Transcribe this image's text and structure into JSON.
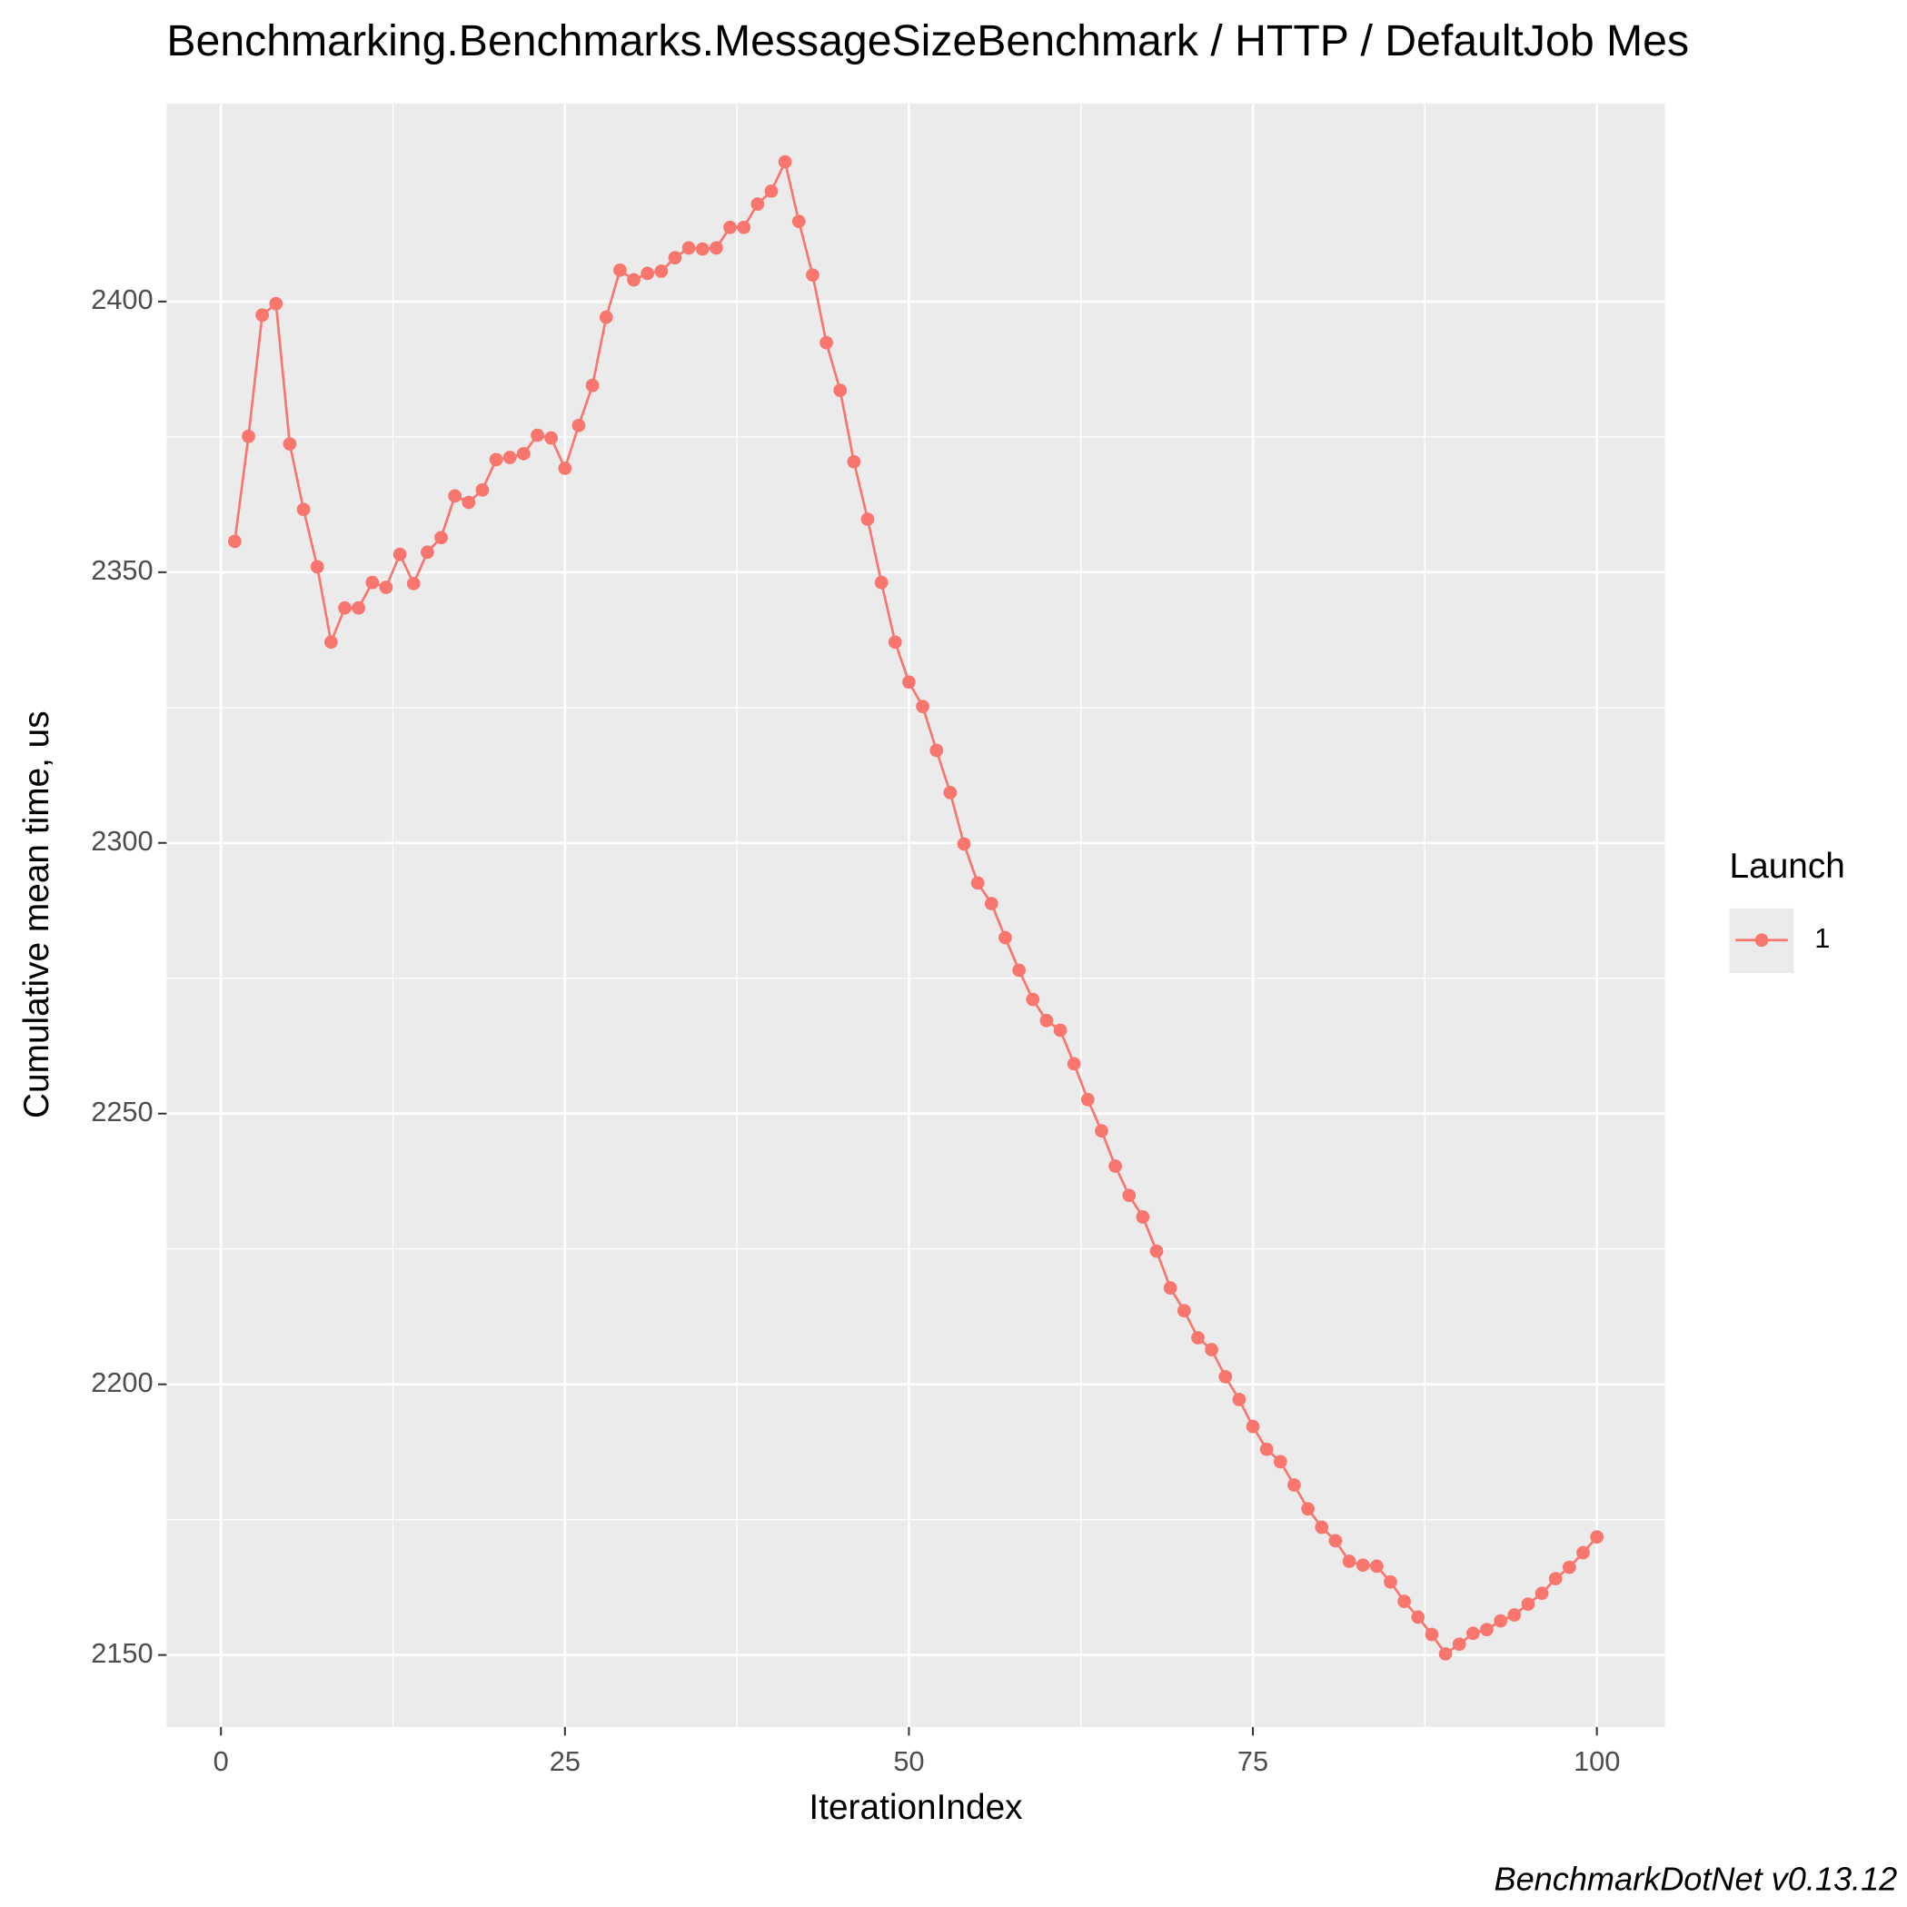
{
  "chart_data": {
    "type": "line",
    "title": "Benchmarking.Benchmarks.MessageSizeBenchmark / HTTP / DefaultJob Mes",
    "x_label": "IterationIndex",
    "y_label": "Cumulative mean time, us",
    "caption": "BenchmarkDotNet v0.13.12",
    "legend_title": "Launch",
    "legend_position": "right",
    "x": [
      1,
      2,
      3,
      4,
      5,
      6,
      7,
      8,
      9,
      10,
      11,
      12,
      13,
      14,
      15,
      16,
      17,
      18,
      19,
      20,
      21,
      22,
      23,
      24,
      25,
      26,
      27,
      28,
      29,
      30,
      31,
      32,
      33,
      34,
      35,
      36,
      37,
      38,
      39,
      40,
      41,
      42,
      43,
      44,
      45,
      46,
      47,
      48,
      49,
      50,
      51,
      52,
      53,
      54,
      55,
      56,
      57,
      58,
      59,
      60,
      61,
      62,
      63,
      64,
      65,
      66,
      67,
      68,
      69,
      70,
      71,
      72,
      73,
      74,
      75,
      76,
      77,
      78,
      79,
      80,
      81,
      82,
      83,
      84,
      85,
      86,
      87,
      88,
      89,
      90,
      91,
      92,
      93,
      94,
      95,
      96,
      97,
      98,
      99,
      100
    ],
    "series": [
      {
        "name": "1",
        "color": "#F8766D",
        "values": [
          2355.7,
          2375.1,
          2397.5,
          2399.6,
          2373.7,
          2361.6,
          2351.0,
          2337.1,
          2343.4,
          2343.4,
          2348.1,
          2347.2,
          2353.3,
          2347.9,
          2353.7,
          2356.4,
          2364.1,
          2362.9,
          2365.2,
          2370.8,
          2371.2,
          2371.9,
          2375.3,
          2374.8,
          2369.2,
          2377.1,
          2384.5,
          2397.1,
          2405.8,
          2404.0,
          2405.2,
          2405.6,
          2408.1,
          2409.9,
          2409.7,
          2409.9,
          2413.7,
          2413.7,
          2418.0,
          2420.4,
          2425.8,
          2414.8,
          2404.9,
          2392.4,
          2383.6,
          2370.4,
          2359.8,
          2348.1,
          2337.1,
          2329.7,
          2325.2,
          2317.1,
          2309.3,
          2299.8,
          2292.6,
          2288.8,
          2282.5,
          2276.5,
          2271.1,
          2267.2,
          2265.4,
          2259.2,
          2252.6,
          2246.8,
          2240.3,
          2234.9,
          2230.9,
          2224.6,
          2217.8,
          2213.6,
          2208.6,
          2206.4,
          2201.4,
          2197.2,
          2192.2,
          2188.0,
          2185.7,
          2181.4,
          2177.0,
          2173.6,
          2171.1,
          2167.3,
          2166.6,
          2166.4,
          2163.5,
          2159.9,
          2157.0,
          2153.8,
          2150.2,
          2152.0,
          2154.0,
          2154.7,
          2156.3,
          2157.4,
          2159.4,
          2161.4,
          2164.1,
          2166.2,
          2168.9,
          2171.8
        ]
      }
    ],
    "xlim": [
      -3.95,
      104.95
    ],
    "xticks": [
      0,
      25,
      50,
      75,
      100
    ],
    "ylim": [
      2136.7,
      2436.6
    ],
    "yticks": [
      2150,
      2200,
      2250,
      2300,
      2350,
      2400
    ],
    "grid": true,
    "minor_grid": true,
    "markers": true
  }
}
